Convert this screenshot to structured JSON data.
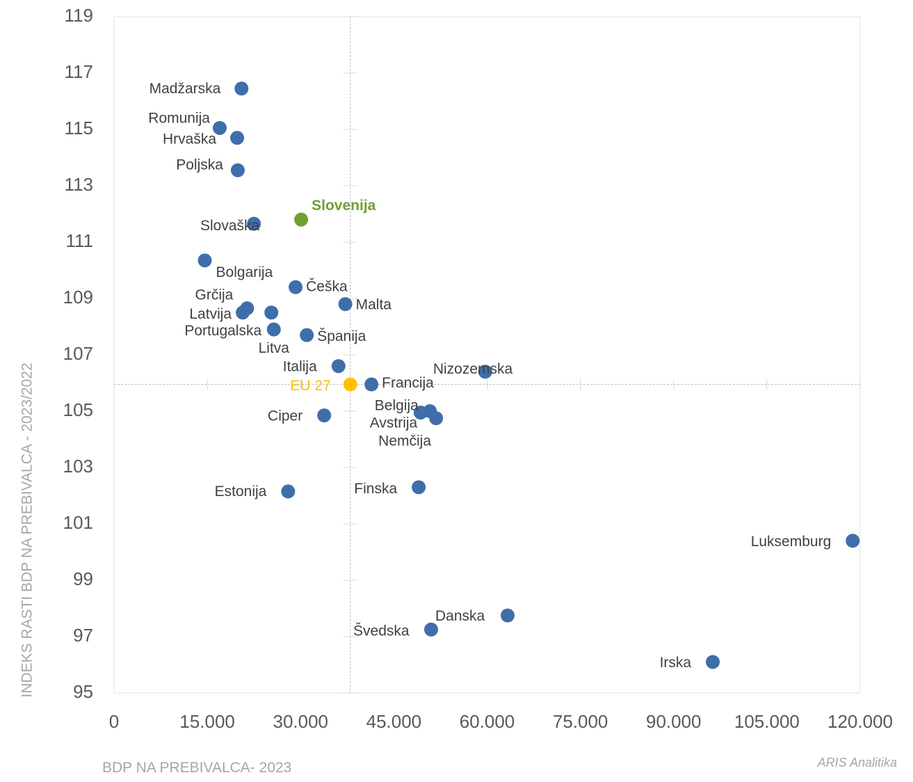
{
  "chart_data": {
    "type": "scatter",
    "xlabel": "BDP NA PREBIVALCA- 2023",
    "ylabel": "INDEKS RASTI BDP NA PREBIVALCA  - 2023/2022",
    "xlim": [
      0,
      120000
    ],
    "ylim": [
      95,
      119
    ],
    "x_ticks": [
      0,
      15000,
      30000,
      45000,
      60000,
      75000,
      90000,
      105000,
      120000
    ],
    "x_tick_labels": [
      "0",
      "15.000",
      "30.000",
      "45.000",
      "60.000",
      "75.000",
      "90.000",
      "105.000",
      "120.000"
    ],
    "y_ticks": [
      95,
      97,
      99,
      101,
      103,
      105,
      107,
      109,
      111,
      113,
      115,
      117,
      119
    ],
    "y_tick_labels": [
      "95",
      "97",
      "99",
      "101",
      "103",
      "105",
      "107",
      "109",
      "111",
      "113",
      "115",
      "117",
      "119"
    ],
    "grid": false,
    "reference_lines": {
      "x": 38000,
      "y": 105.95,
      "style": "dashed"
    },
    "colors": {
      "default": "#3f6eab",
      "Slovenija": "#70a030",
      "EU 27": "#ffc000"
    },
    "points": [
      {
        "name": "Madžarska",
        "x": 20500,
        "y": 116.45
      },
      {
        "name": "Romunija",
        "x": 17000,
        "y": 115.05
      },
      {
        "name": "Hrvaška",
        "x": 19800,
        "y": 114.7
      },
      {
        "name": "Poljska",
        "x": 19900,
        "y": 113.55
      },
      {
        "name": "Slovenija",
        "x": 30100,
        "y": 111.8
      },
      {
        "name": "Slovaška",
        "x": 22500,
        "y": 111.65
      },
      {
        "name": "Bolgarija",
        "x": 14600,
        "y": 110.35
      },
      {
        "name": "Grčija",
        "x": 21400,
        "y": 108.65
      },
      {
        "name": "Latvija",
        "x": 20700,
        "y": 108.5
      },
      {
        "name": "Češka",
        "x": 29200,
        "y": 109.4
      },
      {
        "name": "Malta",
        "x": 37200,
        "y": 108.8
      },
      {
        "name": "Portugalska",
        "x": 25300,
        "y": 108.5
      },
      {
        "name": "Litva",
        "x": 25700,
        "y": 107.9
      },
      {
        "name": "Španija",
        "x": 31000,
        "y": 107.7
      },
      {
        "name": "Italija",
        "x": 36100,
        "y": 106.6
      },
      {
        "name": "EU 27",
        "x": 38000,
        "y": 105.95
      },
      {
        "name": "Francija",
        "x": 41400,
        "y": 105.95
      },
      {
        "name": "Nizozemska",
        "x": 59700,
        "y": 106.4
      },
      {
        "name": "Belgija",
        "x": 49300,
        "y": 104.95
      },
      {
        "name": "Avstrija",
        "x": 50800,
        "y": 105.0
      },
      {
        "name": "Nemčija",
        "x": 51800,
        "y": 104.75
      },
      {
        "name": "Ciper",
        "x": 33800,
        "y": 104.85
      },
      {
        "name": "Estonija",
        "x": 28000,
        "y": 102.15
      },
      {
        "name": "Finska",
        "x": 49000,
        "y": 102.3
      },
      {
        "name": "Luksemburg",
        "x": 118800,
        "y": 100.4
      },
      {
        "name": "Danska",
        "x": 63300,
        "y": 97.75
      },
      {
        "name": "Švedska",
        "x": 51000,
        "y": 97.25
      },
      {
        "name": "Irska",
        "x": 96300,
        "y": 96.1
      }
    ]
  },
  "credit": "ARIS Analitika"
}
